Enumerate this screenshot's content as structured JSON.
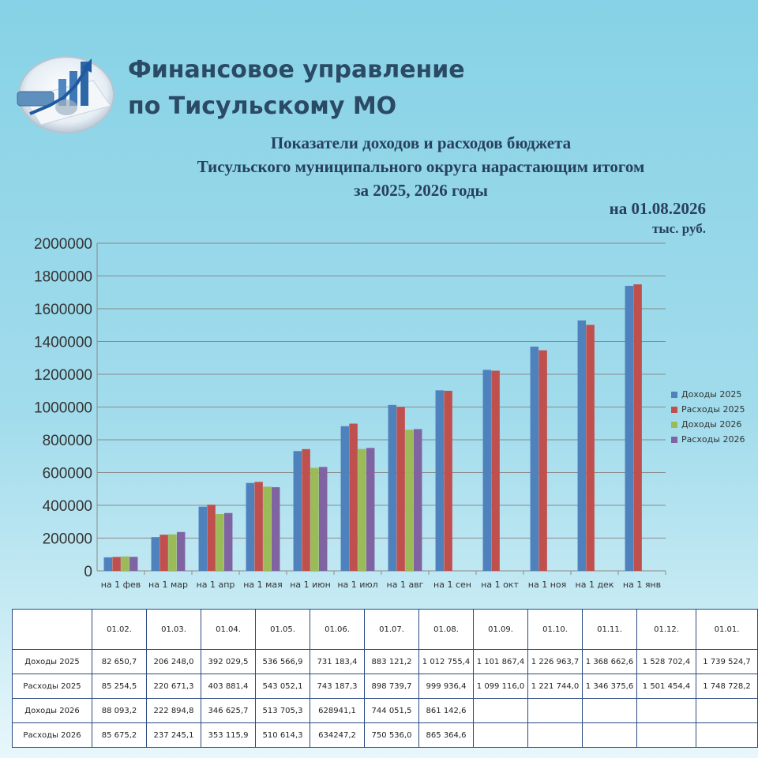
{
  "header": {
    "org_line1": "Финансовое управление",
    "org_line2": "по Тисульскому МО",
    "logo_icon": "finance-chart-logo-icon"
  },
  "chart_title": {
    "line1": "Показатели доходов и расходов бюджета",
    "line2": "Тисульского муниципального округа нарастающим итогом",
    "line3": "за 2025, 2026 годы"
  },
  "date_label": "на 01.08.2026",
  "unit_label": "тыс. руб.",
  "colors": {
    "Доходы 2025": "#4f81bd",
    "Расходы 2025": "#c0504d",
    "Доходы 2026": "#9bbb59",
    "Расходы 2026": "#8064a2"
  },
  "chart_data": {
    "type": "bar",
    "categories": [
      "на 1 фев",
      "на 1 мар",
      "на 1 апр",
      "на 1 мая",
      "на 1 июн",
      "на 1 июл",
      "на 1 авг",
      "на 1 сен",
      "на 1 окт",
      "на 1 ноя",
      "на 1 дек",
      "на 1 янв"
    ],
    "series": [
      {
        "name": "Доходы 2025",
        "values": [
          82650.7,
          206248.0,
          392029.5,
          536566.9,
          731183.4,
          883121.2,
          1012755.4,
          1101867.4,
          1226963.7,
          1368662.6,
          1528702.4,
          1739524.7
        ]
      },
      {
        "name": "Расходы 2025",
        "values": [
          85254.5,
          220671.3,
          403881.4,
          543052.1,
          743187.3,
          898739.7,
          999936.4,
          1099116.0,
          1221744.0,
          1346375.6,
          1501454.4,
          1748728.2
        ]
      },
      {
        "name": "Доходы 2026",
        "values": [
          88093.2,
          222894.8,
          346625.7,
          513705.3,
          628941.1,
          744051.5,
          861142.6,
          null,
          null,
          null,
          null,
          null
        ]
      },
      {
        "name": "Расходы 2026",
        "values": [
          85675.2,
          237245.1,
          353115.9,
          510614.3,
          634247.2,
          750536.0,
          865364.6,
          null,
          null,
          null,
          null,
          null
        ]
      }
    ],
    "ylim": [
      0,
      2000000
    ],
    "yticks": [
      "0",
      "200000",
      "400000",
      "600000",
      "800000",
      "1000000",
      "1200000",
      "1400000",
      "1600000",
      "1800000",
      "2000000"
    ],
    "grid": true,
    "legend_position": "right"
  },
  "table": {
    "headers": [
      "",
      "01.02.",
      "01.03.",
      "01.04.",
      "01.05.",
      "01.06.",
      "01.07.",
      "01.08.",
      "01.09.",
      "01.10.",
      "01.11.",
      "01.12.",
      "01.01."
    ],
    "rows": [
      {
        "label": "Доходы 2025",
        "cells": [
          "82 650,7",
          "206 248,0",
          "392 029,5",
          "536 566,9",
          "731 183,4",
          "883 121,2",
          "1 012 755,4",
          "1 101 867,4",
          "1 226 963,7",
          "1 368 662,6",
          "1 528 702,4",
          "1 739 524,7"
        ]
      },
      {
        "label": "Расходы 2025",
        "cells": [
          "85 254,5",
          "220 671,3",
          "403 881,4",
          "543 052,1",
          "743 187,3",
          "898 739,7",
          "999 936,4",
          "1 099 116,0",
          "1 221 744,0",
          "1 346 375,6",
          "1 501 454,4",
          "1 748 728,2"
        ]
      },
      {
        "label": "Доходы 2026",
        "cells": [
          "88 093,2",
          "222 894,8",
          "346 625,7",
          "513 705,3",
          "628941,1",
          "744 051,5",
          "861 142,6",
          "",
          "",
          "",
          "",
          ""
        ]
      },
      {
        "label": "Расходы 2026",
        "cells": [
          "85 675,2",
          "237 245,1",
          "353 115,9",
          "510 614,3",
          "634247,2",
          "750 536,0",
          "865 364,6",
          "",
          "",
          "",
          "",
          ""
        ]
      }
    ]
  }
}
